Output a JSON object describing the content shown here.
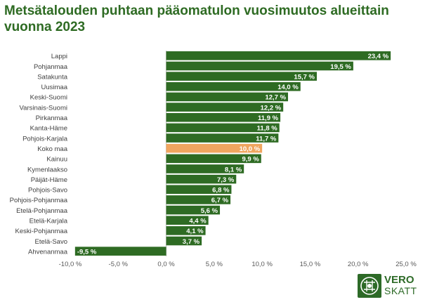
{
  "title": "Metsätalouden puhtaan pääomatulon vuosimuutos alueittain vuonna 2023",
  "colors": {
    "bar": "#2e6b23",
    "highlight": "#f0a55f",
    "title": "#2e6b23"
  },
  "logo": {
    "line1": "VERO",
    "line2": "SKATT"
  },
  "chart_data": {
    "type": "bar",
    "orientation": "horizontal",
    "title": "Metsätalouden puhtaan pääomatulon vuosimuutos alueittain vuonna 2023",
    "categories": [
      "Lappi",
      "Pohjanmaa",
      "Satakunta",
      "Uusimaa",
      "Keski-Suomi",
      "Varsinais-Suomi",
      "Pirkanmaa",
      "Kanta-Häme",
      "Pohjois-Karjala",
      "Koko maa",
      "Kainuu",
      "Kymenlaakso",
      "Päijät-Häme",
      "Pohjois-Savo",
      "Pohjois-Pohjanmaa",
      "Etelä-Pohjanmaa",
      "Etelä-Karjala",
      "Keski-Pohjanmaa",
      "Etelä-Savo",
      "Ahvenanmaa"
    ],
    "values": [
      23.4,
      19.5,
      15.7,
      14.0,
      12.7,
      12.2,
      11.9,
      11.8,
      11.7,
      10.0,
      9.9,
      8.1,
      7.3,
      6.8,
      6.7,
      5.6,
      4.4,
      4.1,
      3.7,
      -9.5
    ],
    "value_labels": [
      "23,4 %",
      "19,5 %",
      "15,7 %",
      "14,0 %",
      "12,7 %",
      "12,2 %",
      "11,9 %",
      "11,8 %",
      "11,7 %",
      "10,0 %",
      "9,9 %",
      "8,1 %",
      "7,3 %",
      "6,8 %",
      "6,7 %",
      "5,6 %",
      "4,4 %",
      "4,1 %",
      "3,7 %",
      "-9,5 %"
    ],
    "highlight_category": "Koko maa",
    "xlim": [
      -10,
      25
    ],
    "xticks": [
      -10,
      -5,
      0,
      5,
      10,
      15,
      20,
      25
    ],
    "xtick_labels": [
      "-10,0 %",
      "-5,0 %",
      "0,0 %",
      "5,0 %",
      "10,0 %",
      "15,0 %",
      "20,0 %",
      "25,0 %"
    ],
    "xlabel": "",
    "ylabel": "",
    "grid": false
  }
}
